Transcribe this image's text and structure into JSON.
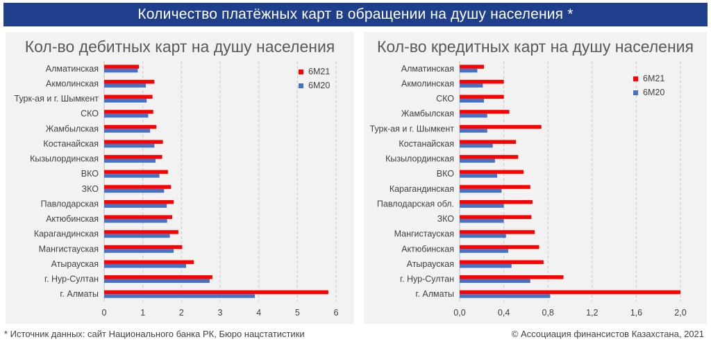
{
  "banner": {
    "title": "Количество платёжных карт в обращении на душу населения *"
  },
  "footer": {
    "source": "* Источник данных: сайт Национального банка РК, Бюро нацстатистики",
    "copyright": "© Ассоциация финансистов Казахстана, 2021"
  },
  "colors": {
    "series_6m21": "#ff0000",
    "series_6m20": "#4472c4",
    "banner": "#1f3f8c",
    "panel": "#f2f2f2"
  },
  "chart_data": [
    {
      "type": "bar",
      "orientation": "horizontal",
      "title": "Кол-во дебитных карт на душу населения",
      "categories": [
        "Алматинская",
        "Акмолинская",
        "Турк-ая и г. Шымкент",
        "СКО",
        "Жамбылская",
        "Костанайская",
        "Кызылординская",
        "ВКО",
        "ЗКО",
        "Павлодарская",
        "Актюбинская",
        "Карагандинская",
        "Мангистауская",
        "Атырауская",
        "г. Нур-Султан",
        "г. Алматы"
      ],
      "series": [
        {
          "name": "6M21",
          "color": "#ff0000",
          "values": [
            0.9,
            1.3,
            1.25,
            1.27,
            1.35,
            1.52,
            1.5,
            1.65,
            1.73,
            1.8,
            1.76,
            1.92,
            2.02,
            2.32,
            2.8,
            5.8
          ]
        },
        {
          "name": "6M20",
          "color": "#4472c4",
          "values": [
            0.87,
            1.08,
            1.1,
            1.14,
            1.19,
            1.3,
            1.33,
            1.43,
            1.55,
            1.62,
            1.63,
            1.7,
            1.8,
            2.12,
            2.73,
            3.9
          ]
        }
      ],
      "xlim": [
        0,
        6
      ],
      "xticks": [
        "0",
        "1",
        "2",
        "3",
        "4",
        "5",
        "6"
      ],
      "xtick_values": [
        0,
        1,
        2,
        3,
        4,
        5,
        6
      ],
      "grid": true,
      "legend": "top-right"
    },
    {
      "type": "bar",
      "orientation": "horizontal",
      "title": "Кол-во кредитных карт на душу населения",
      "categories": [
        "Алматинская",
        "Акмолинская",
        "СКО",
        "Жамбылская",
        "Турк-ая и г. Шымкент",
        "Костанайская",
        "Кызылординская",
        "ВКО",
        "Карагандинская",
        "Павлодарская обл.",
        "ЗКО",
        "Мангистауская",
        "Актюбинская",
        "Атырауская",
        "г. Нур-Султан",
        "г. Алматы"
      ],
      "series": [
        {
          "name": "6M21",
          "color": "#ff0000",
          "values": [
            0.22,
            0.4,
            0.4,
            0.45,
            0.74,
            0.51,
            0.53,
            0.58,
            0.64,
            0.66,
            0.65,
            0.68,
            0.72,
            0.76,
            0.94,
            2.0
          ]
        },
        {
          "name": "6M20",
          "color": "#4472c4",
          "values": [
            0.16,
            0.21,
            0.22,
            0.25,
            0.25,
            0.3,
            0.32,
            0.34,
            0.38,
            0.4,
            0.4,
            0.42,
            0.44,
            0.47,
            0.64,
            0.82
          ]
        }
      ],
      "xlim": [
        0,
        2.0
      ],
      "xticks": [
        "0,0",
        "0,4",
        "0,8",
        "1,2",
        "1,6",
        "2,0"
      ],
      "xtick_values": [
        0,
        0.4,
        0.8,
        1.2,
        1.6,
        2.0
      ],
      "grid": true,
      "legend": "top-right"
    }
  ]
}
